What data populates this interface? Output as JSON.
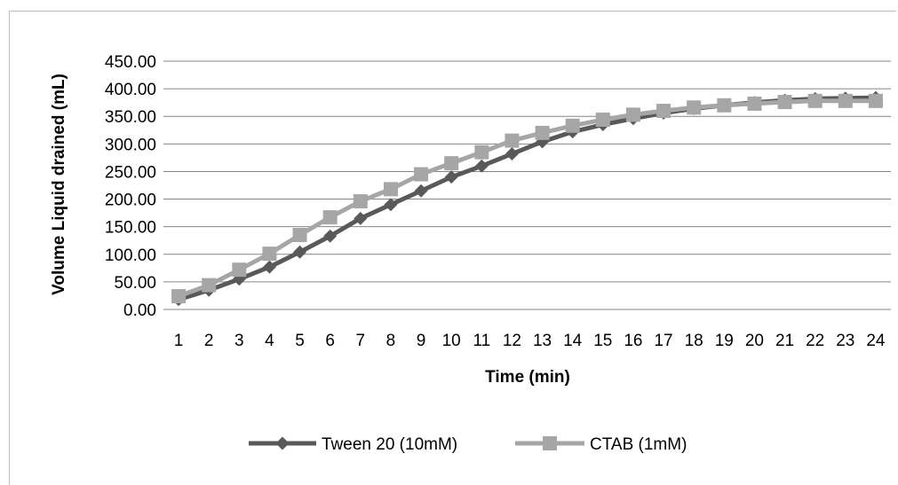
{
  "chart_data": {
    "type": "line",
    "title": "",
    "xlabel": "Time (min)",
    "ylabel": "Volume Liquid drained (mL)",
    "categories": [
      "1",
      "2",
      "3",
      "4",
      "5",
      "6",
      "7",
      "8",
      "9",
      "10",
      "11",
      "12",
      "13",
      "14",
      "15",
      "16",
      "17",
      "18",
      "19",
      "20",
      "21",
      "22",
      "23",
      "24"
    ],
    "y_ticks": [
      "0.00",
      "50.00",
      "100.00",
      "150.00",
      "200.00",
      "250.00",
      "300.00",
      "350.00",
      "400.00",
      "450.00"
    ],
    "ylim": [
      0,
      450
    ],
    "grid": "horizontal",
    "legend_position": "bottom",
    "series": [
      {
        "name": "Tween 20 (10mM)",
        "marker": "diamond",
        "color": "#595959",
        "values": [
          18,
          35,
          55,
          77,
          104,
          133,
          165,
          190,
          215,
          240,
          260,
          282,
          304,
          322,
          335,
          346,
          356,
          364,
          370,
          375,
          379,
          382,
          383,
          384
        ]
      },
      {
        "name": "CTAB (1mM)",
        "marker": "square",
        "color": "#a6a6a6",
        "values": [
          24,
          44,
          72,
          101,
          135,
          167,
          196,
          218,
          245,
          265,
          285,
          306,
          320,
          333,
          344,
          353,
          360,
          366,
          370,
          373,
          376,
          378,
          378,
          378
        ]
      }
    ]
  }
}
